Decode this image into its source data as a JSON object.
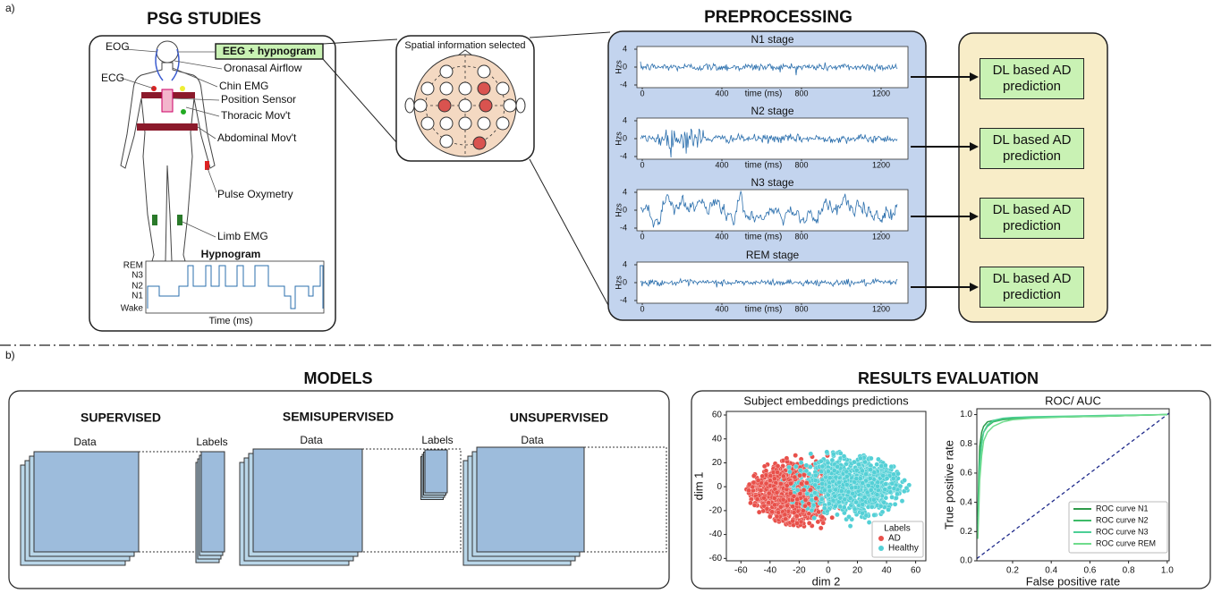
{
  "labels": {
    "a": "a)",
    "b": "b)"
  },
  "psg": {
    "title": "PSG STUDIES",
    "eog": "EOG",
    "ecg": "ECG",
    "eeg": "EEG + hypnogram",
    "oronasal": "Oronasal Airflow",
    "chin": "Chin EMG",
    "position": "Position Sensor",
    "thoracic": "Thoracic Mov't",
    "abdominal": "Abdominal Mov't",
    "pulse": "Pulse Oxymetry",
    "limb": "Limb EMG",
    "hypnogram": {
      "title": "Hypnogram",
      "stages": [
        "REM",
        "N3",
        "N2",
        "N1",
        "Wake"
      ],
      "xlabel": "Time (ms)"
    }
  },
  "spatial": {
    "title": "Spatial information selected"
  },
  "preprocessing": {
    "title": "PREPROCESSING",
    "ylabel": "Hzs",
    "xlabel": "time (ms)",
    "xlim": [
      -27,
      1335
    ],
    "ylim": [
      -4.6,
      4.6
    ],
    "xticks": [
      0,
      400,
      800,
      1200
    ],
    "yticks": [
      4,
      0,
      -4
    ],
    "stages": [
      "N1 stage",
      "N2 stage",
      "N3 stage",
      "REM stage"
    ]
  },
  "prediction": [
    "DL based AD prediction",
    "DL based AD prediction",
    "DL based AD prediction",
    "DL based AD prediction"
  ],
  "models": {
    "title": "MODELS",
    "supervised": {
      "title": "SUPERVISED",
      "data": "Data",
      "labels": "Labels"
    },
    "semisupervised": {
      "title": "SEMISUPERVISED",
      "data": "Data",
      "labels": "Labels"
    },
    "unsupervised": {
      "title": "UNSUPERVISED",
      "data": "Data"
    }
  },
  "results": {
    "title": "RESULTS EVALUATION",
    "scatter": {
      "type": "scatter",
      "title": "Subject embeddings predictions",
      "xlabel": "dim 2",
      "ylabel": "dim 1",
      "xlim": [
        -70,
        67
      ],
      "ylim": [
        -62,
        63
      ],
      "xticks": [
        -60,
        -40,
        -20,
        0,
        20,
        40,
        60
      ],
      "yticks": [
        -60,
        -40,
        -20,
        0,
        20,
        40,
        60
      ],
      "legend_title": "Labels",
      "series": [
        {
          "name": "AD",
          "color": "#e8504a"
        },
        {
          "name": "Healthy",
          "color": "#54d0d6"
        }
      ]
    },
    "roc": {
      "type": "line",
      "title": "ROC/ AUC",
      "xlabel": "False positive rate",
      "ylabel": "True positive rate",
      "xlim": [
        0.015,
        1.01
      ],
      "ylim": [
        0,
        1.04
      ],
      "xticks": [
        0.2,
        0.4,
        0.6,
        0.8,
        {
          "value": 1,
          "label": "1.0"
        }
      ],
      "yticks": [
        {
          "value": 0,
          "label": "0.0"
        },
        0.2,
        0.4,
        0.6,
        0.8,
        {
          "value": 1,
          "label": "1.0"
        }
      ],
      "diagonal_color": "#1f2a8a",
      "x": [
        0.02,
        0.025,
        0.03,
        0.04,
        0.05,
        0.07,
        0.1,
        0.15,
        0.2,
        0.3,
        0.5,
        0.7,
        1.0
      ],
      "series": [
        {
          "name": "ROC curve N1",
          "color": "#2e9a4a",
          "values": [
            0.3,
            0.6,
            0.78,
            0.88,
            0.92,
            0.95,
            0.96,
            0.97,
            0.975,
            0.98,
            0.985,
            0.99,
            1.0
          ]
        },
        {
          "name": "ROC curve N2",
          "color": "#3dbb68",
          "values": [
            0.25,
            0.5,
            0.7,
            0.82,
            0.88,
            0.92,
            0.95,
            0.965,
            0.97,
            0.98,
            0.985,
            0.99,
            1.0
          ]
        },
        {
          "name": "ROC curve N3",
          "color": "#4ccf96",
          "values": [
            0.2,
            0.45,
            0.65,
            0.8,
            0.88,
            0.93,
            0.96,
            0.975,
            0.98,
            0.985,
            0.99,
            0.995,
            1.0
          ]
        },
        {
          "name": "ROC curve REM",
          "color": "#6fdc8c",
          "values": [
            0.15,
            0.35,
            0.55,
            0.72,
            0.82,
            0.88,
            0.92,
            0.95,
            0.965,
            0.975,
            0.985,
            0.99,
            1.0
          ]
        }
      ]
    }
  }
}
